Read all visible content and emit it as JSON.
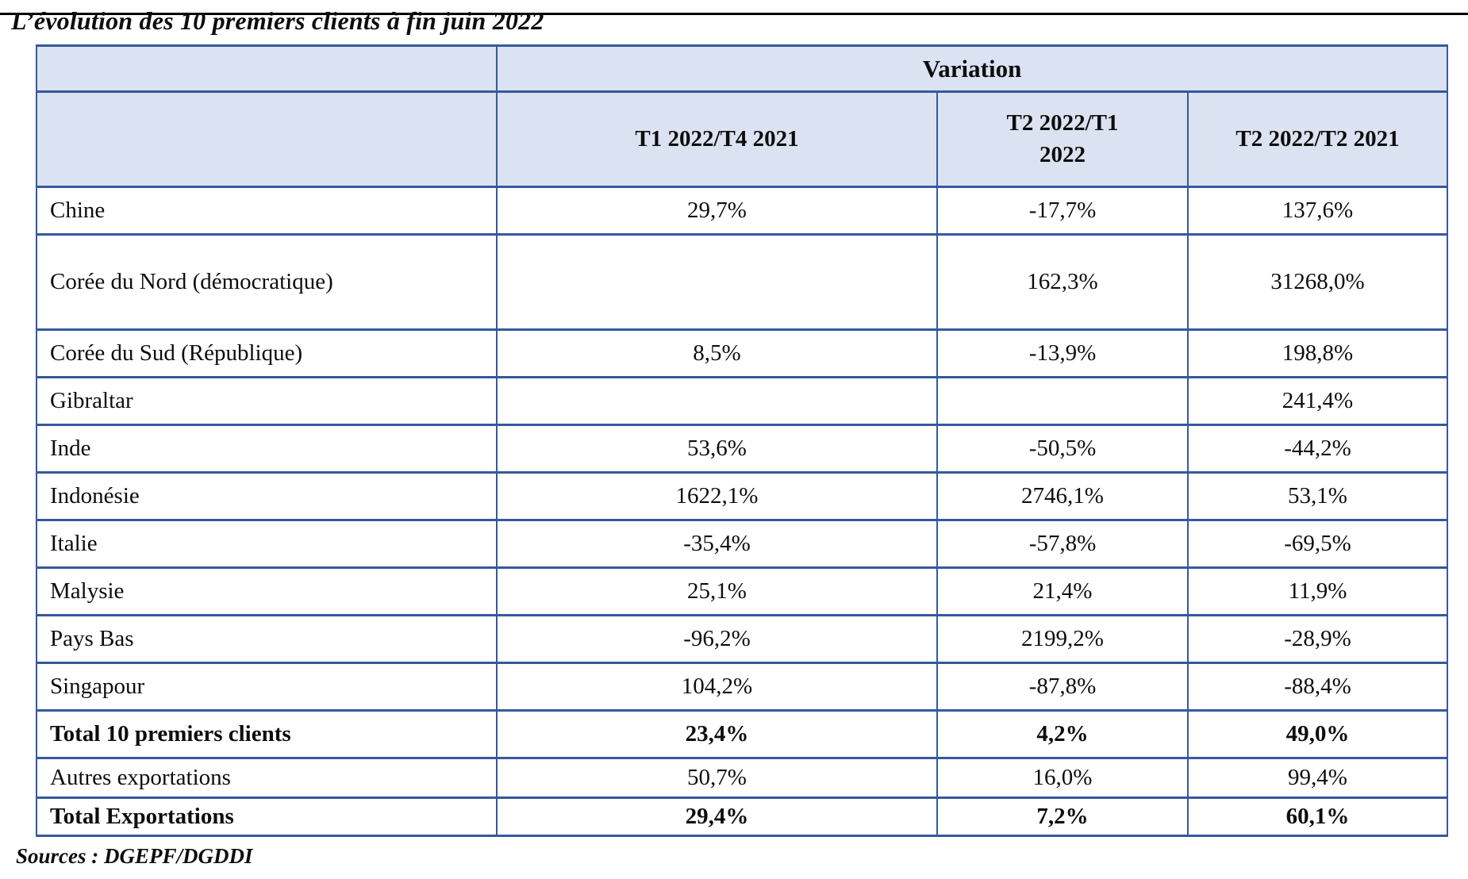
{
  "title": "L’évolution des 10 premiers clients à fin juin 2022",
  "table": {
    "group_header": "Variation",
    "columns": [
      "T1 2022/T4 2021",
      "T2 2022/T1 2022",
      "T2 2022/T2 2021"
    ],
    "rows": [
      {
        "label": "Chine",
        "values": [
          "29,7%",
          "-17,7%",
          "137,6%"
        ]
      },
      {
        "label": "Corée du Nord (démocratique)",
        "values": [
          "",
          "162,3%",
          "31268,0%"
        ]
      },
      {
        "label": "Corée du Sud (République)",
        "values": [
          "8,5%",
          "-13,9%",
          "198,8%"
        ]
      },
      {
        "label": "Gibraltar",
        "values": [
          "",
          "",
          "241,4%"
        ]
      },
      {
        "label": "Inde",
        "values": [
          "53,6%",
          "-50,5%",
          "-44,2%"
        ]
      },
      {
        "label": "Indonésie",
        "values": [
          "1622,1%",
          "2746,1%",
          "53,1%"
        ]
      },
      {
        "label": "Italie",
        "values": [
          "-35,4%",
          "-57,8%",
          "-69,5%"
        ]
      },
      {
        "label": "Malysie",
        "values": [
          "25,1%",
          "21,4%",
          "11,9%"
        ]
      },
      {
        "label": "Pays Bas",
        "values": [
          "-96,2%",
          "2199,2%",
          "-28,9%"
        ]
      },
      {
        "label": "Singapour",
        "values": [
          "104,2%",
          "-87,8%",
          "-88,4%"
        ]
      },
      {
        "label": "Total 10 premiers clients",
        "values": [
          "23,4%",
          "4,2%",
          "49,0%"
        ]
      },
      {
        "label": "Autres exportations",
        "values": [
          "50,7%",
          "16,0%",
          "99,4%"
        ]
      },
      {
        "label": "Total Exportations",
        "values": [
          "29,4%",
          "7,2%",
          "60,1%"
        ]
      }
    ]
  },
  "sources": "Sources : DGEPF/DGDDI",
  "colors": {
    "border": "#35599e",
    "header_fill": "#dbe2f1",
    "title_rule": "#000000"
  }
}
